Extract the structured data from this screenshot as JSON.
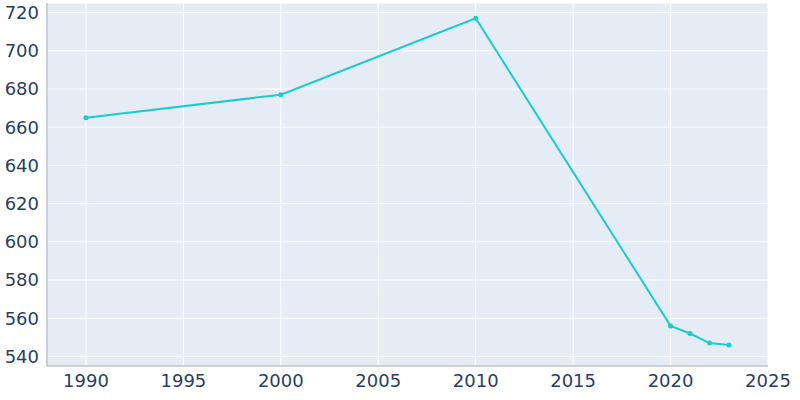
{
  "chart_data": {
    "type": "line",
    "x": [
      1990,
      2000,
      2010,
      2020,
      2021,
      2022,
      2023
    ],
    "values": [
      665,
      677,
      717,
      556,
      552,
      547,
      546
    ],
    "color": "#1ccbcb",
    "marker": "circle",
    "xlim": [
      1988,
      2025
    ],
    "xticks": [
      1990,
      1995,
      2000,
      2005,
      2010,
      2015,
      2020,
      2025
    ],
    "ylim": [
      535,
      725
    ],
    "yticks": [
      540,
      560,
      580,
      600,
      620,
      640,
      660,
      680,
      700,
      720
    ],
    "grid": true
  }
}
